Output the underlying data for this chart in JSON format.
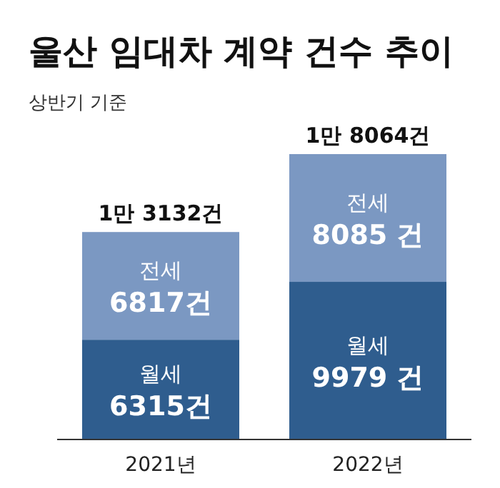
{
  "chart_data": {
    "type": "bar",
    "title": "울산 임대차 계약 건수 추이",
    "subtitle": "상반기 기준",
    "categories": [
      "2021년",
      "2022년"
    ],
    "stacked": true,
    "series": [
      {
        "name": "월세",
        "color": "#2f5d8e",
        "values": [
          6315,
          9979
        ],
        "value_labels": [
          "6315건",
          "9979 건"
        ]
      },
      {
        "name": "전세",
        "color": "#7b98c2",
        "values": [
          6817,
          8085
        ],
        "value_labels": [
          "6817건",
          "8085 건"
        ]
      }
    ],
    "totals": [
      "1만 3132건",
      "1만 8064건"
    ]
  }
}
